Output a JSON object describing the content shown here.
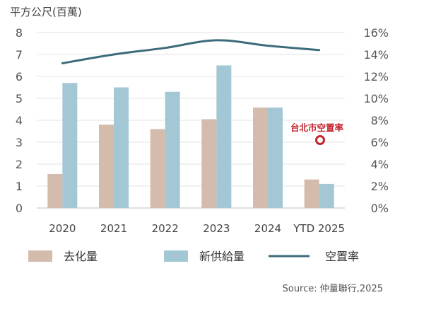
{
  "chart_data": {
    "type": "bar",
    "y_unit_label": "平方公尺(百萬)",
    "categories": [
      "2020",
      "2021",
      "2022",
      "2023",
      "2024",
      "YTD 2025"
    ],
    "ylim": [
      0,
      8
    ],
    "yticks": [
      "0",
      "1",
      "2",
      "3",
      "4",
      "5",
      "6",
      "7",
      "8"
    ],
    "y2lim": [
      0,
      16
    ],
    "y2ticks": [
      "0%",
      "2%",
      "4%",
      "6%",
      "8%",
      "10%",
      "12%",
      "14%",
      "16%"
    ],
    "grid": true,
    "legend_position": "bottom",
    "series": [
      {
        "name": "去化量",
        "type": "bar",
        "axis": "left",
        "color": "#d4bcad",
        "values": [
          1.55,
          3.8,
          3.6,
          4.05,
          4.58,
          1.3
        ]
      },
      {
        "name": "新供給量",
        "type": "bar",
        "axis": "left",
        "color": "#a3c7d4",
        "values": [
          5.7,
          5.5,
          5.3,
          6.5,
          4.58,
          1.1
        ]
      },
      {
        "name": "空置率",
        "type": "line",
        "axis": "right",
        "color": "#3e6b7b",
        "values": [
          13.2,
          14.0,
          14.6,
          15.3,
          14.8,
          14.4
        ]
      }
    ],
    "annotation": {
      "text": "台北市空置率",
      "color": "#c3262e"
    },
    "source": "Source: 仲量聯行,2025"
  }
}
